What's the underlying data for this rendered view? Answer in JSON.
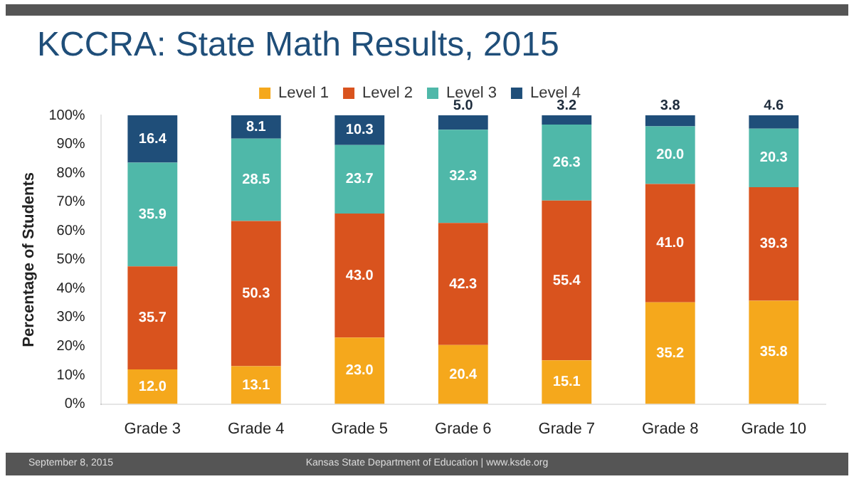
{
  "chart_data": {
    "type": "bar",
    "stacked": true,
    "title": "KCCRA: State Math Results, 2015",
    "ylabel": "Percentage of Students",
    "categories": [
      "Grade 3",
      "Grade 4",
      "Grade 5",
      "Grade 6",
      "Grade 7",
      "Grade 8",
      "Grade 10"
    ],
    "series": [
      {
        "name": "Level 1",
        "color": "#f5a81c",
        "values": [
          12.0,
          13.1,
          23.0,
          20.4,
          15.1,
          35.2,
          35.8
        ]
      },
      {
        "name": "Level 2",
        "color": "#d9531e",
        "values": [
          35.7,
          50.3,
          43.0,
          42.3,
          55.4,
          41.0,
          39.3
        ]
      },
      {
        "name": "Level 3",
        "color": "#4fb8a9",
        "values": [
          35.9,
          28.5,
          23.7,
          32.3,
          26.3,
          20.0,
          20.3
        ]
      },
      {
        "name": "Level 4",
        "color": "#1f4e79",
        "values": [
          16.4,
          8.1,
          10.3,
          5.0,
          3.2,
          3.8,
          4.6
        ]
      }
    ],
    "value_labels": [
      [
        "12.0",
        "13.1",
        "23.0",
        "20.4",
        "15.1",
        "35.2",
        "35.8"
      ],
      [
        "35.7",
        "50.3",
        "43.0",
        "42.3",
        "55.4",
        "41.0",
        "39.3"
      ],
      [
        "35.9",
        "28.5",
        "23.7",
        "32.3",
        "26.3",
        "20.0",
        "20.3"
      ],
      [
        "16.4",
        "8.1",
        "10.3",
        "5.0",
        "3.2",
        "3.8",
        "4.6"
      ]
    ],
    "ylim": [
      0,
      100
    ],
    "yticks": [
      {
        "value": 0,
        "label": "0%"
      },
      {
        "value": 10,
        "label": "10%"
      },
      {
        "value": 20,
        "label": "20%"
      },
      {
        "value": 30,
        "label": "30%"
      },
      {
        "value": 40,
        "label": "40%"
      },
      {
        "value": 50,
        "label": "50%"
      },
      {
        "value": 60,
        "label": "60%"
      },
      {
        "value": 70,
        "label": "70%"
      },
      {
        "value": 80,
        "label": "80%"
      },
      {
        "value": 90,
        "label": "90%"
      },
      {
        "value": 100,
        "label": "100%"
      }
    ],
    "grid": false,
    "legend": "top",
    "annotations": [
      "September 8, 2015",
      "Kansas State Department of Education | www.ksde.org"
    ]
  }
}
